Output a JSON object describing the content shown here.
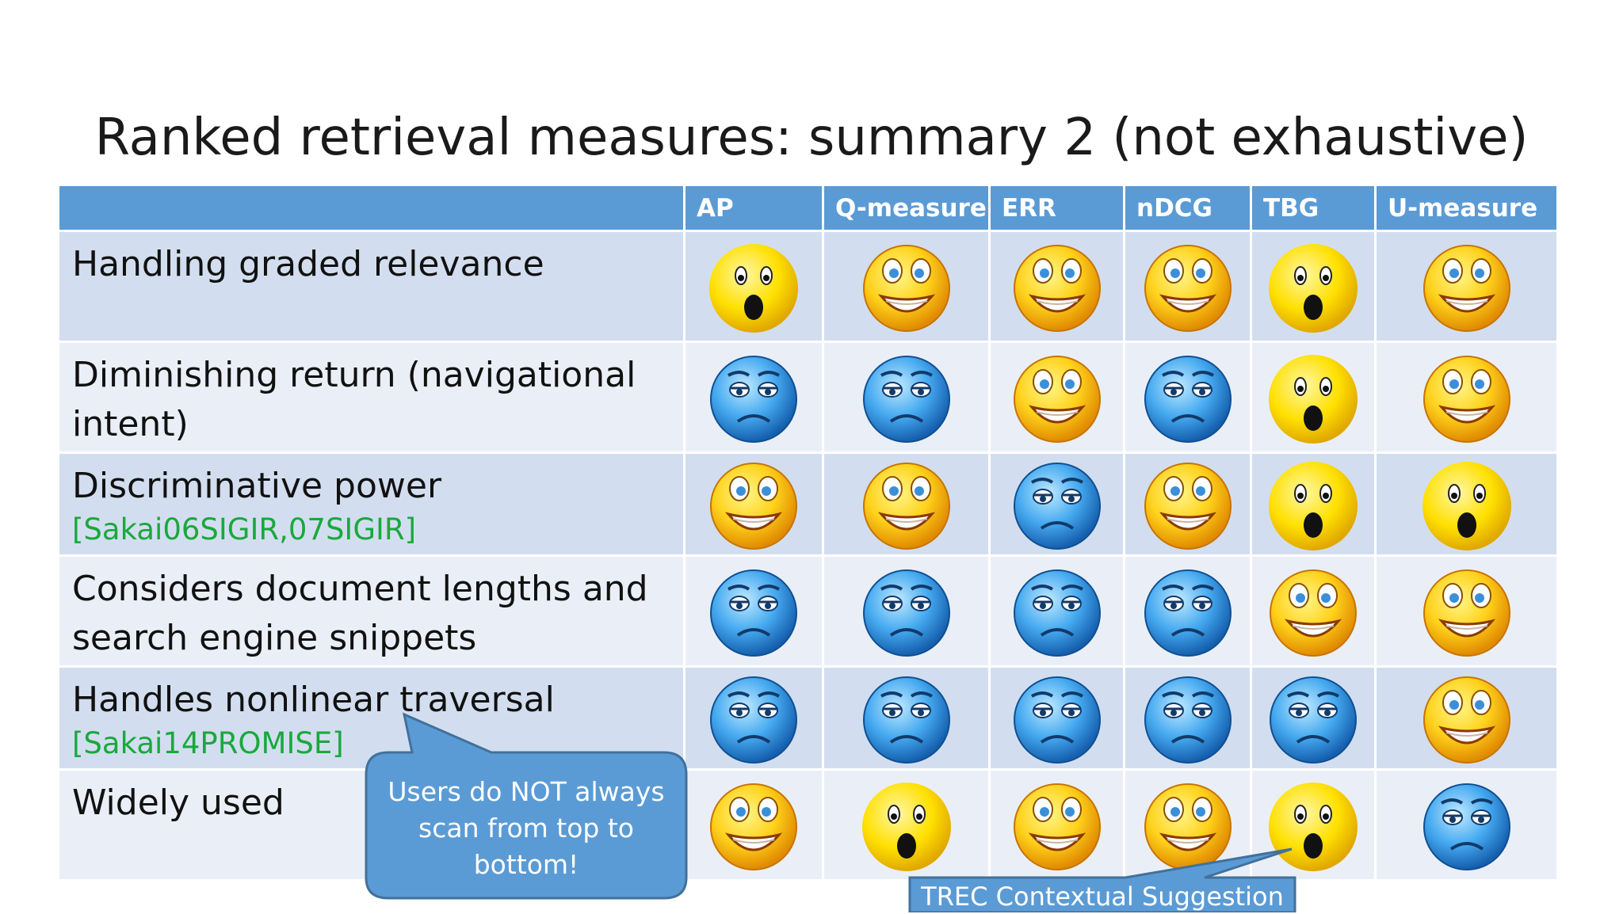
{
  "slide": {
    "title": "Ranked retrieval measures: summary 2 (not exhaustive)"
  },
  "table": {
    "columns": [
      "AP",
      "Q-measure",
      "ERR",
      "nDCG",
      "TBG",
      "U-measure"
    ],
    "rows": [
      {
        "label": "Handling graded relevance",
        "citation": "",
        "ratings": [
          "surprised",
          "happy",
          "happy",
          "happy",
          "surprised",
          "happy"
        ]
      },
      {
        "label": "Diminishing return (navigational intent)",
        "citation": "",
        "ratings": [
          "sad",
          "sad",
          "happy",
          "sad",
          "surprised",
          "happy"
        ]
      },
      {
        "label": "Discriminative power",
        "citation": "[Sakai06SIGIR,07SIGIR]",
        "ratings": [
          "happy",
          "happy",
          "sad",
          "happy",
          "surprised",
          "surprised"
        ]
      },
      {
        "label": "Considers document lengths and search engine snippets",
        "citation": "",
        "ratings": [
          "sad",
          "sad",
          "sad",
          "sad",
          "happy",
          "happy"
        ]
      },
      {
        "label": "Handles nonlinear traversal",
        "citation": "[Sakai14PROMISE]",
        "ratings": [
          "sad",
          "sad",
          "sad",
          "sad",
          "sad",
          "happy"
        ]
      },
      {
        "label": "Widely used",
        "citation": "",
        "ratings": [
          "happy",
          "surprised",
          "happy",
          "happy",
          "surprised",
          "sad"
        ]
      }
    ]
  },
  "callouts": {
    "users_note": "Users do NOT always scan from top to bottom!",
    "trec_note": "TREC Contextual Suggestion"
  },
  "colors": {
    "header_bg": "#5b9bd5",
    "row_odd": "#d2deef",
    "row_even": "#eaeff7",
    "citation": "#1aa83c",
    "callout_fill": "#5b9bd5",
    "callout_stroke": "#41719c"
  }
}
